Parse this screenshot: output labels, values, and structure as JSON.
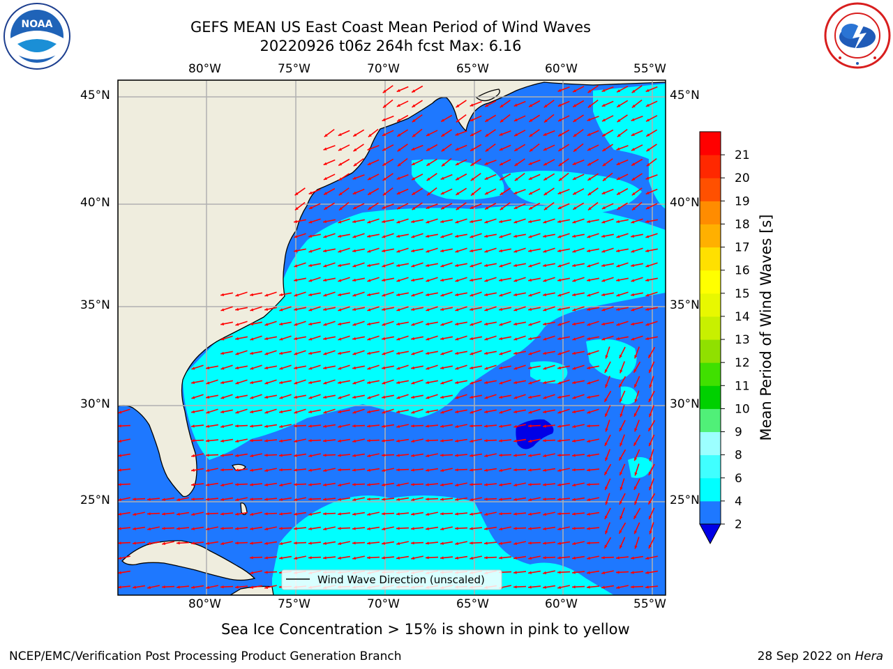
{
  "header": {
    "title_line1": "GEFS MEAN US East Coast Mean Period of Wind Waves",
    "title_line2": "20220926 t06z 264h fcst   Max: 6.16"
  },
  "logos": {
    "left_name": "NOAA",
    "left_ring_text": "NATIONAL OCEANIC AND ATMOSPHERIC ADMINISTRATION · U.S. DEPARTMENT OF COMMERCE",
    "right_ring_text": "NATIONAL WEATHER SERVICE"
  },
  "map": {
    "lon_labels": [
      "80°W",
      "75°W",
      "70°W",
      "65°W",
      "60°W",
      "55°W"
    ],
    "lat_labels": [
      "45°N",
      "40°N",
      "35°N",
      "30°N",
      "25°N"
    ],
    "legend_label": "Wind Wave Direction (unscaled)",
    "colors": {
      "land": "#efedde",
      "ocean_low": "#1e78ff",
      "ocean_mid": "#00ffff",
      "ocean_min": "#0000e6",
      "arrows": "#ff0000",
      "grid": "#b0b0b0"
    }
  },
  "colorbar": {
    "label": "Mean Period of Wind Waves [s]",
    "tick_labels": [
      "2",
      "4",
      "6",
      "8",
      "9",
      "10",
      "11",
      "12",
      "13",
      "14",
      "15",
      "16",
      "17",
      "18",
      "19",
      "20",
      "21"
    ],
    "colors": [
      "#1e78ff",
      "#00ffff",
      "#40ffff",
      "#9cffff",
      "#50f078",
      "#00d000",
      "#40e000",
      "#90e000",
      "#c8f000",
      "#e8f800",
      "#ffff00",
      "#ffe000",
      "#ffb000",
      "#ff8c00",
      "#ff5000",
      "#ff2800",
      "#ff0000"
    ],
    "under_color": "#0000e6"
  },
  "footer": {
    "note": "Sea Ice Concentration > 15% is shown in pink to yellow",
    "left": "NCEP/EMC/Verification Post Processing Product Generation Branch",
    "date": "28 Sep 2022 on ",
    "host": "Hera"
  }
}
